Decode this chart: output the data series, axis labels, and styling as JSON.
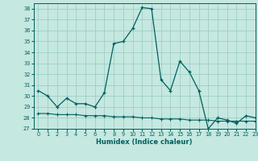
{
  "xlabel": "Humidex (Indice chaleur)",
  "bg_color": "#c5e8e0",
  "grid_color": "#9ecec5",
  "line_color": "#005f5f",
  "xlim": [
    -0.5,
    23
  ],
  "ylim": [
    27,
    38.5
  ],
  "yticks": [
    27,
    28,
    29,
    30,
    31,
    32,
    33,
    34,
    35,
    36,
    37,
    38
  ],
  "xticks": [
    0,
    1,
    2,
    3,
    4,
    5,
    6,
    7,
    8,
    9,
    10,
    11,
    12,
    13,
    14,
    15,
    16,
    17,
    18,
    19,
    20,
    21,
    22,
    23
  ],
  "line1_x": [
    0,
    1,
    2,
    3,
    4,
    5,
    6,
    7,
    8,
    9,
    10,
    11,
    12,
    13,
    14,
    15,
    16,
    17,
    18,
    19,
    20,
    21,
    22,
    23
  ],
  "line1_y": [
    30.5,
    30.0,
    29.0,
    29.8,
    29.3,
    29.3,
    29.0,
    30.3,
    34.8,
    35.0,
    36.2,
    38.1,
    38.0,
    31.5,
    30.5,
    33.2,
    32.2,
    30.5,
    27.0,
    28.0,
    27.8,
    27.5,
    28.2,
    28.0
  ],
  "line2_x": [
    0,
    1,
    2,
    3,
    4,
    5,
    6,
    7,
    8,
    9,
    10,
    11,
    12,
    13,
    14,
    15,
    16,
    17,
    18,
    19,
    20,
    21,
    22,
    23
  ],
  "line2_y": [
    28.4,
    28.4,
    28.3,
    28.3,
    28.3,
    28.2,
    28.2,
    28.2,
    28.1,
    28.1,
    28.1,
    28.0,
    28.0,
    27.9,
    27.9,
    27.9,
    27.8,
    27.8,
    27.8,
    27.7,
    27.7,
    27.7,
    27.7,
    27.7
  ]
}
